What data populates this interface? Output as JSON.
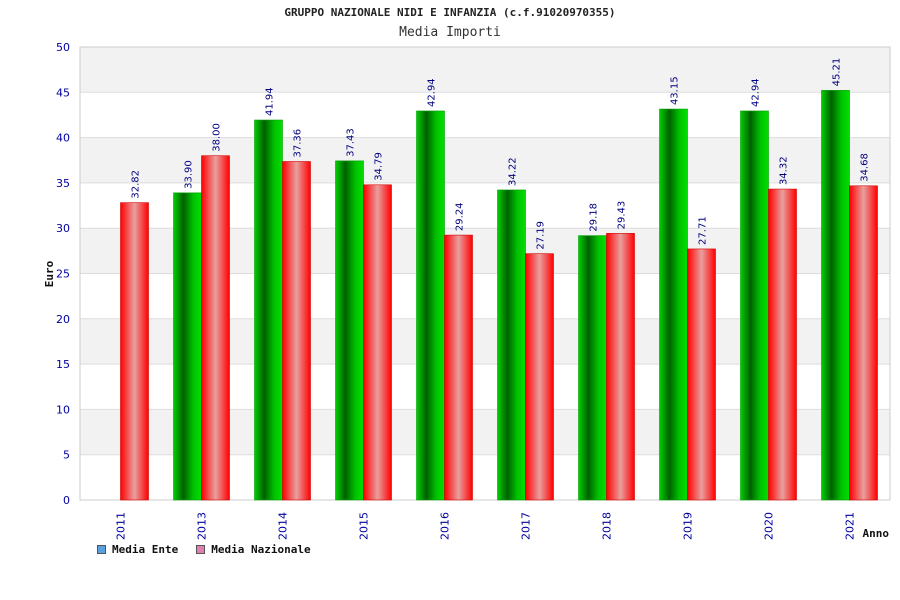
{
  "chart_data": {
    "type": "bar",
    "title": "GRUPPO NAZIONALE NIDI E INFANZIA (c.f.91020970355)",
    "subtitle": "Media Importi",
    "xlabel": "Anno",
    "ylabel": "Euro",
    "ylim": [
      0,
      50
    ],
    "yticks": [
      0,
      5,
      10,
      15,
      20,
      25,
      30,
      35,
      40,
      45,
      50
    ],
    "categories": [
      "2011",
      "2013",
      "2014",
      "2015",
      "2016",
      "2017",
      "2018",
      "2019",
      "2020",
      "2021"
    ],
    "series": [
      {
        "name": "Media Ente",
        "values": [
          null,
          33.9,
          41.94,
          37.43,
          42.94,
          34.22,
          29.18,
          43.15,
          42.94,
          45.21
        ],
        "labels": [
          "",
          "33.90",
          "41.94",
          "37.43",
          "42.94",
          "34.22",
          "29.18",
          "43.15",
          "42.94",
          "45.21"
        ]
      },
      {
        "name": "Media Nazionale",
        "values": [
          32.82,
          38.0,
          37.36,
          34.79,
          29.24,
          27.19,
          29.43,
          27.71,
          34.32,
          34.68
        ],
        "labels": [
          "32.82",
          "38.00",
          "37.36",
          "34.79",
          "29.24",
          "27.19",
          "29.43",
          "27.71",
          "34.32",
          "34.68"
        ]
      }
    ],
    "grid": true,
    "legend_position": "bottom-left",
    "colors": {
      "ente_bar": "#00c000",
      "nazionale_bar": "#ff0000",
      "legend_ente": "#5aa0e0",
      "legend_nazionale": "#e080b0",
      "axis_text": "#0000a0",
      "label_text": "#000080"
    }
  }
}
